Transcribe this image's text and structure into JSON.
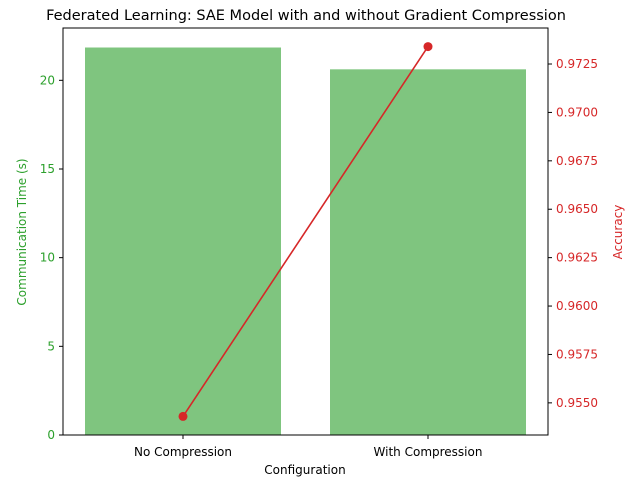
{
  "chart_data": {
    "type": "bar",
    "title": "Federated Learning: SAE Model with and without Gradient Compression",
    "xlabel": "Configuration",
    "categories": [
      "No Compression",
      "With Compression"
    ],
    "series": [
      {
        "name": "Communication Time (s)",
        "type": "bar",
        "axis": "left",
        "values": [
          21.85,
          20.62
        ],
        "color": "#7fc57f"
      },
      {
        "name": "Accuracy",
        "type": "line",
        "axis": "right",
        "values": [
          0.9543,
          0.9734
        ],
        "color": "#d62728"
      }
    ],
    "y_left": {
      "label": "Communication Time (s)",
      "ylim": [
        0,
        22.95
      ],
      "ticks": [
        0,
        5,
        10,
        15,
        20
      ],
      "tick_labels": [
        "0",
        "5",
        "10",
        "15",
        "20"
      ],
      "color": "#2ca02c"
    },
    "y_right": {
      "label": "Accuracy",
      "ylim": [
        0.95334,
        0.97436
      ],
      "ticks": [
        0.955,
        0.9575,
        0.96,
        0.9625,
        0.965,
        0.9675,
        0.97,
        0.9725
      ],
      "tick_labels": [
        "0.9550",
        "0.9575",
        "0.9600",
        "0.9625",
        "0.9650",
        "0.9675",
        "0.9700",
        "0.9725"
      ],
      "color": "#d62728"
    },
    "grid": false,
    "legend": "none"
  }
}
